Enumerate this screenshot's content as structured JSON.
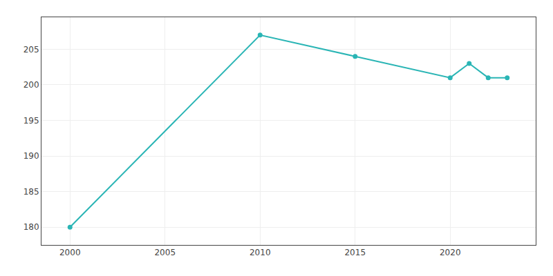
{
  "chart_data": {
    "type": "line",
    "x": [
      2000,
      2010,
      2015,
      2020,
      2021,
      2022,
      2023
    ],
    "values": [
      180,
      207,
      204,
      201,
      203,
      201,
      201
    ],
    "color": "#2ab5b5",
    "marker": "circle",
    "xlim": [
      1998.5,
      2024.5
    ],
    "ylim": [
      177.5,
      209.5
    ],
    "xticks": [
      2000,
      2005,
      2010,
      2015,
      2020
    ],
    "yticks": [
      180,
      185,
      190,
      195,
      200,
      205
    ],
    "grid": true
  }
}
